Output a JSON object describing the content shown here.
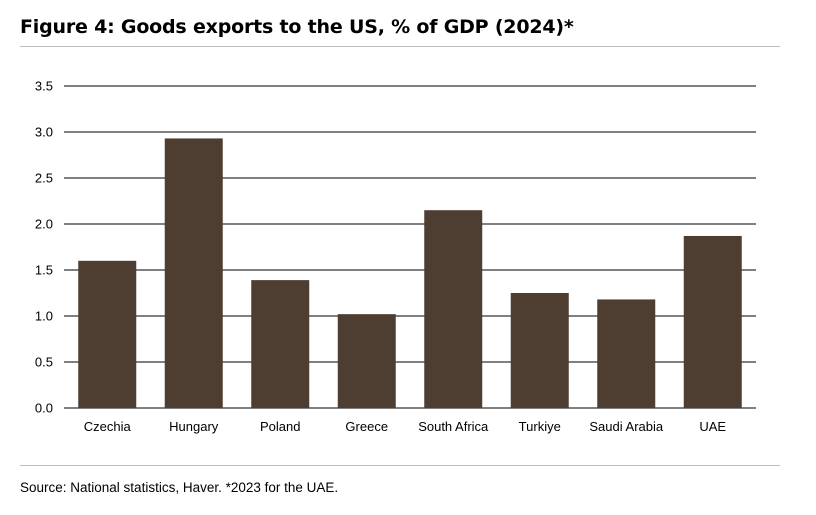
{
  "figure": {
    "title": "Figure 4: Goods exports to the US, % of GDP (2024)*",
    "source": "Source: National statistics, Haver. *2023 for the UAE."
  },
  "chart_data": {
    "type": "bar",
    "title": "Figure 4: Goods exports to the US, % of GDP (2024)*",
    "xlabel": "",
    "ylabel": "",
    "categories": [
      "Czechia",
      "Hungary",
      "Poland",
      "Greece",
      "South Africa",
      "Turkiye",
      "Saudi Arabia",
      "UAE"
    ],
    "values": [
      1.6,
      2.93,
      1.39,
      1.02,
      2.15,
      1.25,
      1.18,
      1.87
    ],
    "ylim": [
      0,
      3.5
    ],
    "yticks": [
      0,
      0.5,
      1,
      1.5,
      2,
      2.5,
      3,
      3.5
    ],
    "ytick_labels": [
      "0.0",
      "0.5",
      "1.0",
      "1.5",
      "2.0",
      "2.5",
      "3.0",
      "3.5"
    ],
    "grid": true,
    "legend": "none",
    "bar_color": "#4e3d31"
  }
}
